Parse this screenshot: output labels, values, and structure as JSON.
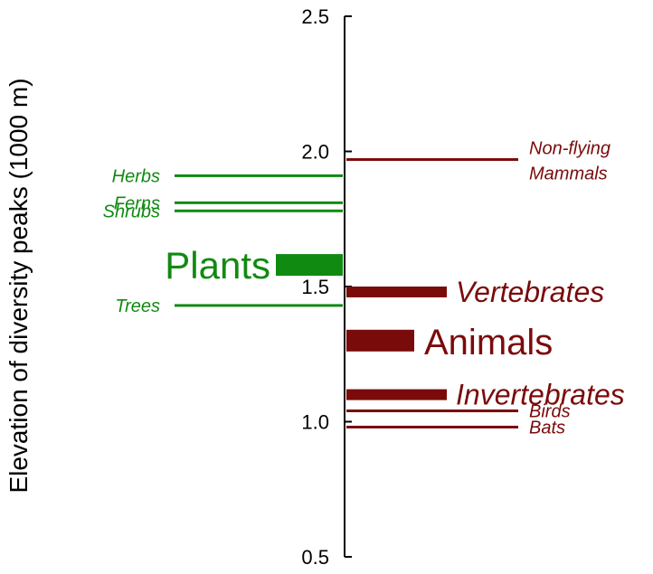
{
  "chart_data": {
    "type": "bar",
    "ylabel": "Elevation of diversity peaks (1000 m)",
    "ylim": [
      0.5,
      2.5
    ],
    "yticks": [
      "0.5",
      "1.0",
      "1.5",
      "2.0",
      "2.5"
    ],
    "grid": false,
    "colors": {
      "plants": "#118a11",
      "animals": "#7a0b0b",
      "axis": "#000000"
    },
    "plants": [
      {
        "label": "Herbs",
        "value": 1.91,
        "kind": "item",
        "direction": "left",
        "color": "plants"
      },
      {
        "label": "Ferns",
        "value": 1.81,
        "kind": "item",
        "direction": "left",
        "color": "plants"
      },
      {
        "label": "Shrubs",
        "value": 1.78,
        "kind": "item",
        "direction": "left",
        "color": "plants"
      },
      {
        "label": "Plants",
        "value": 1.58,
        "kind": "group",
        "direction": "left",
        "color": "plants"
      },
      {
        "label": "Trees",
        "value": 1.43,
        "kind": "item",
        "direction": "left",
        "color": "plants"
      }
    ],
    "animals": [
      {
        "label": "Non-flying Mammals",
        "value": 1.97,
        "kind": "item",
        "direction": "right",
        "color": "animals"
      },
      {
        "label": "Vertebrates",
        "value": 1.48,
        "kind": "subgroup",
        "direction": "right",
        "color": "animals"
      },
      {
        "label": "Animals",
        "value": 1.3,
        "kind": "group",
        "direction": "right",
        "color": "animals"
      },
      {
        "label": "Invertebrates",
        "value": 1.1,
        "kind": "subgroup",
        "direction": "right",
        "color": "animals"
      },
      {
        "label": "Birds",
        "value": 1.04,
        "kind": "item",
        "direction": "right",
        "color": "animals"
      },
      {
        "label": "Bats",
        "value": 0.98,
        "kind": "item",
        "direction": "right",
        "color": "animals"
      }
    ]
  }
}
